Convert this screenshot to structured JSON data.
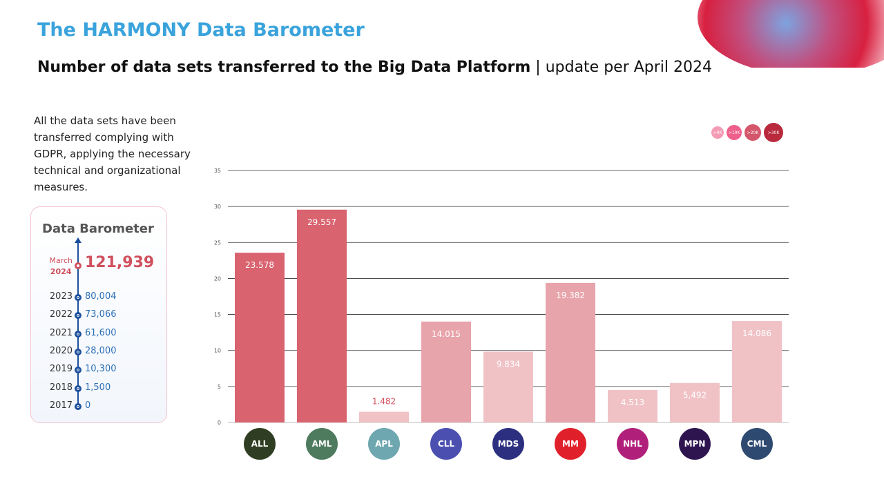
{
  "header": {
    "title": "The HARMONY Data Barometer",
    "subtitle_bold": "Number of data sets transferred to the Big Data Platform",
    "subtitle_rest": " | update per April 2024"
  },
  "intro": "All the data sets have been transferred complying with GDPR, applying the necessary technical and organizational measures.",
  "barometer": {
    "title": "Data Barometer",
    "current": {
      "month": "March",
      "year": "2024",
      "value": "121,939"
    },
    "history": [
      {
        "year": "2023",
        "value": "80,004"
      },
      {
        "year": "2022",
        "value": "73,066"
      },
      {
        "year": "2021",
        "value": "61,600"
      },
      {
        "year": "2020",
        "value": "28,000"
      },
      {
        "year": "2019",
        "value": "10,300"
      },
      {
        "year": "2018",
        "value": "1,500"
      },
      {
        "year": "2017",
        "value": "0"
      }
    ]
  },
  "legend": [
    {
      "label": ">0K",
      "color": "#f39bb5"
    },
    {
      "label": ">10K",
      "color": "#ee5f8c"
    },
    {
      "label": ">20K",
      "color": "#d4566a"
    },
    {
      "label": ">30K",
      "color": "#b82a3c"
    }
  ],
  "chart_data": {
    "type": "bar",
    "categories": [
      "ALL",
      "AML",
      "APL",
      "CLL",
      "MDS",
      "MM",
      "NHL",
      "MPN",
      "CML"
    ],
    "values": [
      23.578,
      29.557,
      1.482,
      14.015,
      9.834,
      19.382,
      4.513,
      5.492,
      14.086
    ],
    "labels": [
      "23.578",
      "29.557",
      "1.482",
      "14.015",
      "9.834",
      "19.382",
      "4.513",
      "5,492",
      "14.086"
    ],
    "bar_colors": [
      "#d9636f",
      "#d9636f",
      "#f0c2c6",
      "#e8a4ab",
      "#f0c2c6",
      "#e8a4ab",
      "#f0c2c6",
      "#f0c2c6",
      "#f0c2c6"
    ],
    "badge_colors": [
      "#2f3d22",
      "#4e7a5e",
      "#6fa7b0",
      "#4a4fb0",
      "#2c2f80",
      "#e0202a",
      "#b0207a",
      "#2e1550",
      "#2f4a70"
    ],
    "yticks": [
      0,
      5,
      10,
      15,
      20,
      25,
      30,
      35
    ],
    "ytick_labels": [
      "0",
      "5",
      "10",
      "15",
      "20",
      "25",
      "30",
      "35"
    ],
    "ylim": [
      0,
      35
    ],
    "grid": true,
    "title": "",
    "xlabel": "",
    "ylabel": ""
  }
}
